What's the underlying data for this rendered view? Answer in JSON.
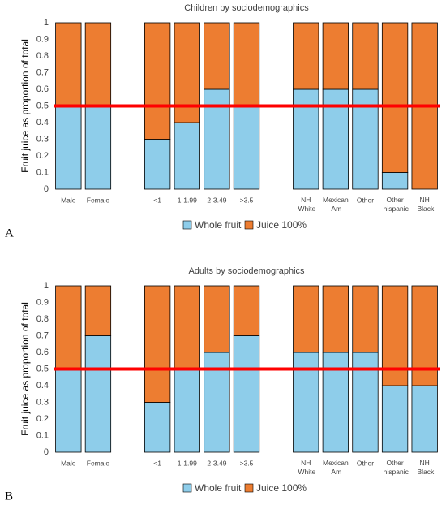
{
  "chart_data": [
    {
      "type": "bar",
      "stacked": true,
      "panel_label": "A",
      "title": "Children by sociodemographics",
      "ylabel": "Fruit juice as proportion of total",
      "categories": [
        "Male",
        "Female",
        null,
        "<1",
        "1-1.99",
        "2-3.49",
        ">3.5",
        null,
        "NH White",
        "Mexican Am",
        "Other",
        "Other hispanic",
        "NH Black"
      ],
      "series": [
        {
          "name": "Whole fruit",
          "color": "#8ecdea",
          "values": [
            0.5,
            0.5,
            null,
            0.3,
            0.4,
            0.6,
            0.5,
            null,
            0.6,
            0.6,
            0.6,
            0.1,
            0
          ]
        },
        {
          "name": "Juice 100%",
          "color": "#ed7d31",
          "values": [
            0.5,
            0.5,
            null,
            0.7,
            0.6,
            0.4,
            0.5,
            null,
            0.4,
            0.4,
            0.4,
            0.9,
            1
          ]
        }
      ],
      "ylim": [
        0,
        1
      ],
      "yticks": [
        0,
        0.1,
        0.2,
        0.3,
        0.4,
        0.5,
        0.6,
        0.7,
        0.8,
        0.9,
        1
      ],
      "reference_line": {
        "value": 0.5,
        "color": "#ff0000"
      }
    },
    {
      "type": "bar",
      "stacked": true,
      "panel_label": "B",
      "title": "Adults by sociodemographics",
      "ylabel": "Fruit juice as proportion of total",
      "categories": [
        "Male",
        "Female",
        null,
        "<1",
        "1-1.99",
        "2-3.49",
        ">3.5",
        null,
        "NH White",
        "Mexican Am",
        "Other",
        "Other hispanic",
        "NH Black"
      ],
      "series": [
        {
          "name": "Whole fruit",
          "color": "#8ecdea",
          "values": [
            0.5,
            0.7,
            null,
            0.3,
            0.5,
            0.6,
            0.7,
            null,
            0.6,
            0.6,
            0.6,
            0.4,
            0.4
          ]
        },
        {
          "name": "Juice 100%",
          "color": "#ed7d31",
          "values": [
            0.5,
            0.3,
            null,
            0.7,
            0.5,
            0.4,
            0.3,
            null,
            0.4,
            0.4,
            0.4,
            0.6,
            0.6
          ]
        }
      ],
      "ylim": [
        0,
        1
      ],
      "yticks": [
        0,
        0.1,
        0.2,
        0.3,
        0.4,
        0.5,
        0.6,
        0.7,
        0.8,
        0.9,
        1
      ],
      "reference_line": {
        "value": 0.5,
        "color": "#ff0000"
      }
    }
  ]
}
